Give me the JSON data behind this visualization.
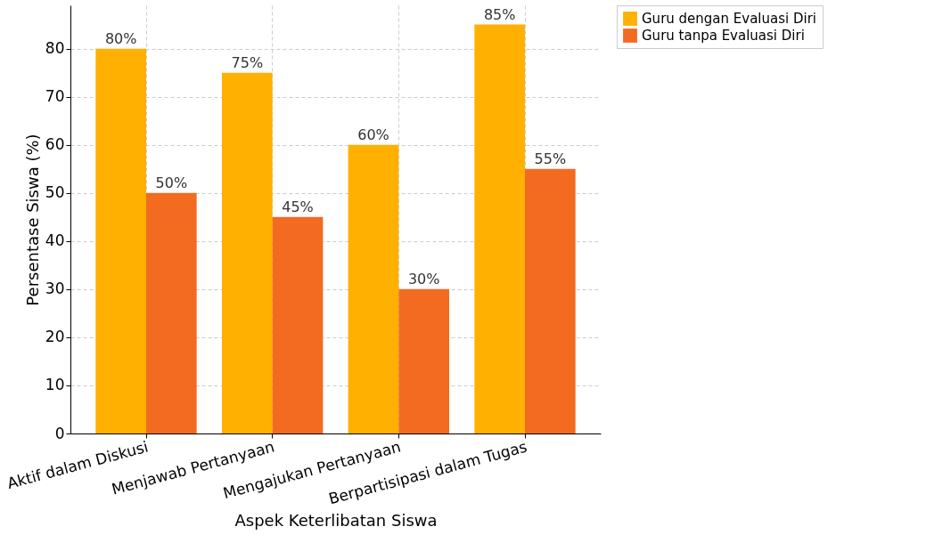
{
  "chart_data": {
    "type": "bar",
    "xlabel": "Aspek Keterlibatan Siswa",
    "ylabel": "Persentase Siswa (%)",
    "categories": [
      "Aktif dalam Diskusi",
      "Menjawab Pertanyaan",
      "Mengajukan Pertanyaan",
      "Berpartisipasi dalam Tugas"
    ],
    "series": [
      {
        "name": "Guru dengan Evaluasi Diri",
        "color": "#ffb000",
        "values": [
          80,
          75,
          60,
          85
        ],
        "value_labels": [
          "80%",
          "75%",
          "60%",
          "85%"
        ]
      },
      {
        "name": "Guru tanpa Evaluasi Diri",
        "color": "#f26b21",
        "values": [
          50,
          45,
          30,
          55
        ],
        "value_labels": [
          "50%",
          "45%",
          "30%",
          "55%"
        ]
      }
    ],
    "ylim": [
      0,
      89
    ],
    "yticks": [
      0,
      10,
      20,
      30,
      40,
      50,
      60,
      70,
      80
    ],
    "grid": true,
    "legend": "right"
  }
}
